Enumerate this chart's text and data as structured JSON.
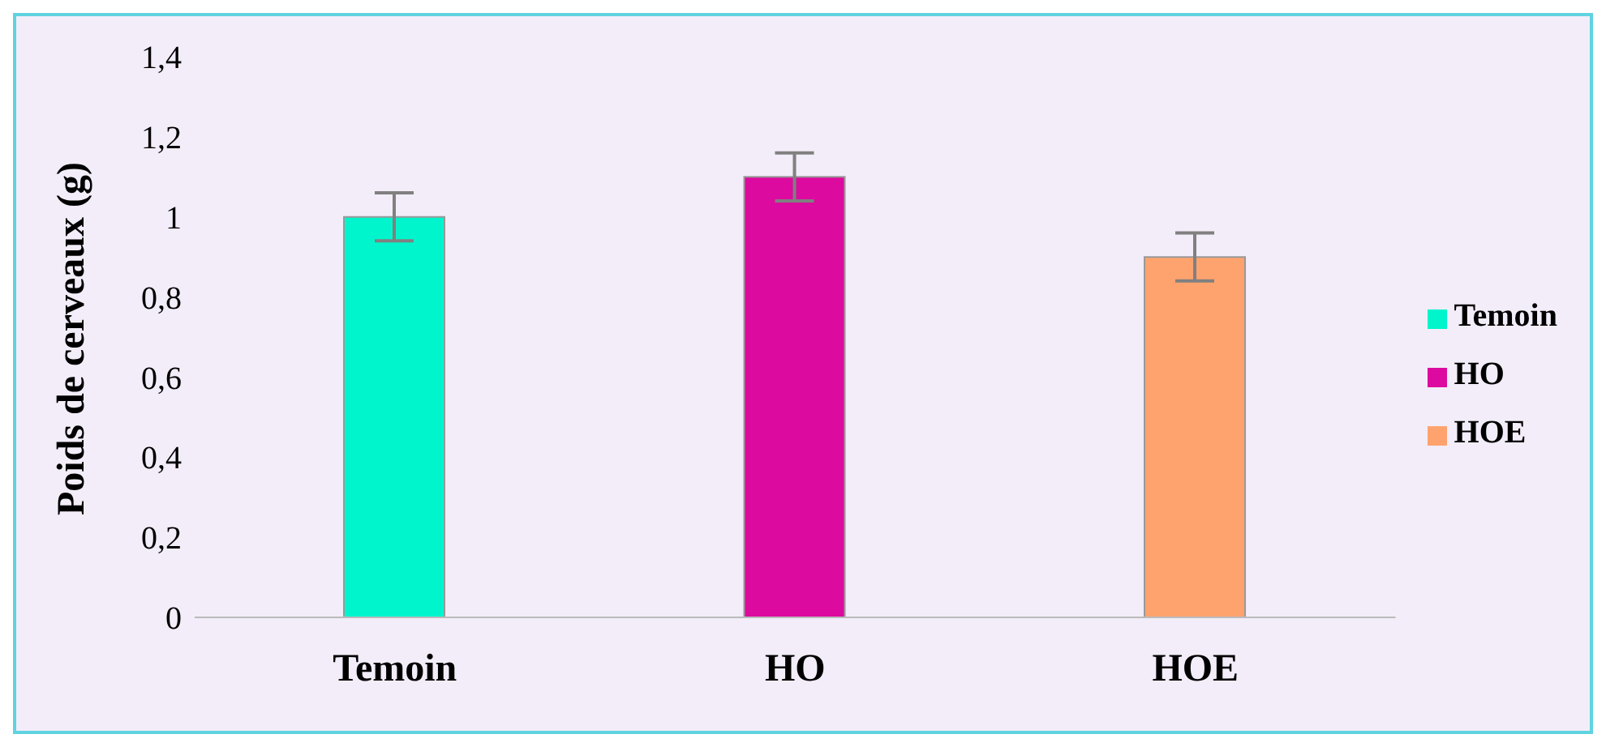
{
  "chart_data": {
    "type": "bar",
    "ylabel": "Poids de cerveaux (g)",
    "categories": [
      "Temoin",
      "HO",
      "HOE"
    ],
    "series": [
      {
        "name": "Temoin",
        "color": "#00f5cc",
        "values": [
          1.0,
          null,
          null
        ],
        "errors": [
          0.06,
          null,
          null
        ]
      },
      {
        "name": "HO",
        "color": "#dc0a9e",
        "values": [
          null,
          1.1,
          null
        ],
        "errors": [
          null,
          0.06,
          null
        ]
      },
      {
        "name": "HOE",
        "color": "#ffa36e",
        "values": [
          null,
          null,
          0.9
        ],
        "errors": [
          null,
          null,
          0.06
        ]
      }
    ],
    "ylim": [
      0,
      1.4
    ],
    "yticks": [
      0,
      {
        "value": 0.2,
        "label": "0,2"
      },
      {
        "value": 0.4,
        "label": "0,4"
      },
      {
        "value": 0.6,
        "label": "0,6"
      },
      {
        "value": 0.8,
        "label": "0,8"
      },
      1,
      {
        "value": 1.2,
        "label": "1,2"
      },
      {
        "value": 1.4,
        "label": "1,4"
      }
    ],
    "legend": "right",
    "grid": false
  }
}
